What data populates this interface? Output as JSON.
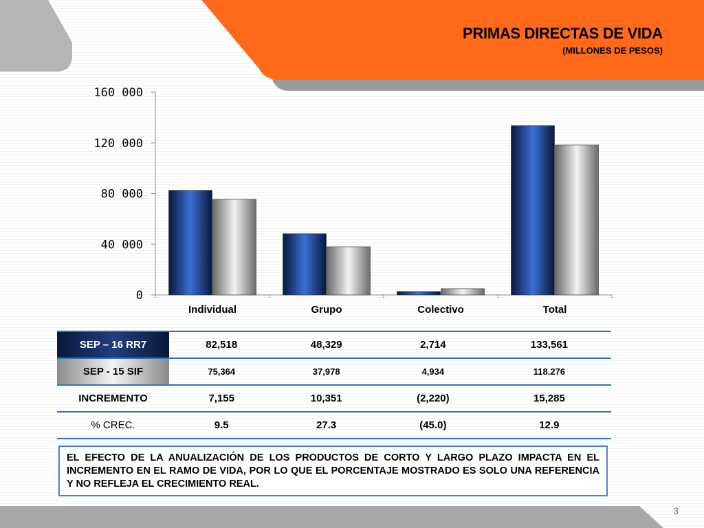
{
  "slide": {
    "title": "PRIMAS DIRECTAS DE VIDA",
    "subtitle": "(MILLONES DE PESOS)",
    "page_number": "3",
    "accent_color": "#ff6a1a"
  },
  "chart_data": {
    "type": "bar",
    "categories": [
      "Individual",
      "Grupo",
      "Colectivo",
      "Total"
    ],
    "series": [
      {
        "name": "SEP – 16 RR7",
        "values": [
          82518,
          48329,
          2714,
          133561
        ],
        "color": "#1f4aa0"
      },
      {
        "name": "SEP - 15 SIF",
        "values": [
          75364,
          37978,
          4934,
          118276
        ],
        "color": "#9a9a9a"
      }
    ],
    "ylim": [
      0,
      160000
    ],
    "yticks": [
      0,
      40000,
      80000,
      120000,
      160000
    ],
    "ytick_labels": [
      "0",
      "40 000",
      "80 000",
      "120 000",
      "160 000"
    ],
    "grid": false,
    "legend": "none"
  },
  "table": {
    "rows": [
      {
        "label": "SEP – 16 RR7",
        "values": [
          "82,518",
          "48,329",
          "2,714",
          "133,561"
        ]
      },
      {
        "label": "SEP - 15 SIF",
        "values": [
          "75,364",
          "37,978",
          "4,934",
          "118.276"
        ]
      },
      {
        "label": "INCREMENTO",
        "values": [
          "7,155",
          "10,351",
          "(2,220)",
          "15,285"
        ]
      },
      {
        "label": "% CREC.",
        "values": [
          "9.5",
          "27.3",
          "(45.0)",
          "12.9"
        ]
      }
    ]
  },
  "note": "EL EFECTO DE LA ANUALIZACIÓN DE LOS PRODUCTOS DE CORTO Y LARGO PLAZO IMPACTA EN EL INCREMENTO EN EL RAMO DE VIDA, POR LO QUE EL PORCENTAJE MOSTRADO ES SOLO UNA REFERENCIA Y NO REFLEJA EL CRECIMIENTO REAL."
}
